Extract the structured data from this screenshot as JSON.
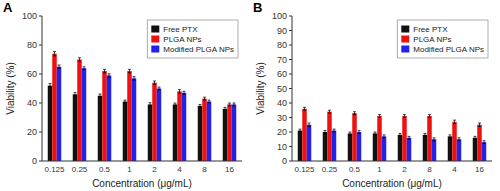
{
  "chart_data": [
    {
      "type": "bar",
      "title": "A",
      "categories": [
        "0.125",
        "0.25",
        "0.5",
        "1",
        "2",
        "4",
        "8",
        "16"
      ],
      "series": [
        {
          "name": "Free PTX",
          "color": "#111111",
          "values": [
            52,
            46,
            45,
            41,
            39,
            39,
            38,
            36
          ],
          "errors": [
            1.5,
            1.2,
            1.2,
            1.0,
            1.2,
            1.0,
            1.0,
            1.0
          ]
        },
        {
          "name": "PLGA NPs",
          "color": "#ee1111",
          "values": [
            74,
            70,
            62,
            62,
            54,
            48,
            43,
            39
          ],
          "errors": [
            1.5,
            1.2,
            1.2,
            1.2,
            1.2,
            1.2,
            1.0,
            1.0
          ]
        },
        {
          "name": "Modified PLGA NPs",
          "color": "#2222ee",
          "values": [
            65,
            64,
            59,
            57,
            50,
            47,
            41,
            39
          ],
          "errors": [
            1.2,
            1.0,
            1.2,
            1.2,
            1.0,
            1.0,
            1.0,
            1.0
          ]
        }
      ],
      "x_label": "Concentration (μg/mL)",
      "y_label": "Viability (%)",
      "ylim": [
        0,
        100
      ],
      "yticks": [
        0,
        20,
        40,
        60,
        80,
        100
      ],
      "legend": "upper right",
      "grid": false
    },
    {
      "type": "bar",
      "title": "B",
      "categories": [
        "0.125",
        "0.25",
        "0.5",
        "1",
        "2",
        "8",
        "4",
        "16"
      ],
      "series": [
        {
          "name": "Free PTX",
          "color": "#111111",
          "values": [
            21,
            20,
            19,
            19,
            18,
            18,
            17,
            16
          ],
          "errors": [
            1.0,
            1.0,
            1.0,
            1.0,
            1.0,
            1.0,
            1.0,
            1.0
          ]
        },
        {
          "name": "PLGA NPs",
          "color": "#ee1111",
          "values": [
            36,
            34,
            33,
            31,
            31,
            31,
            27,
            25
          ],
          "errors": [
            1.0,
            1.0,
            1.0,
            1.0,
            1.0,
            1.0,
            1.2,
            1.2
          ]
        },
        {
          "name": "Modified PLGA NPs",
          "color": "#2222ee",
          "values": [
            25,
            21,
            20,
            17,
            16,
            15,
            15,
            13
          ],
          "errors": [
            1.2,
            1.0,
            1.0,
            1.0,
            1.0,
            1.0,
            1.0,
            1.0
          ]
        }
      ],
      "x_label": "Concentration (μg/mL)",
      "y_label": "Viability (%)",
      "ylim": [
        0,
        100
      ],
      "yticks": [
        0,
        10,
        20,
        30,
        40,
        50,
        60,
        70,
        80,
        90,
        100
      ],
      "legend": "upper right",
      "grid": false
    }
  ]
}
